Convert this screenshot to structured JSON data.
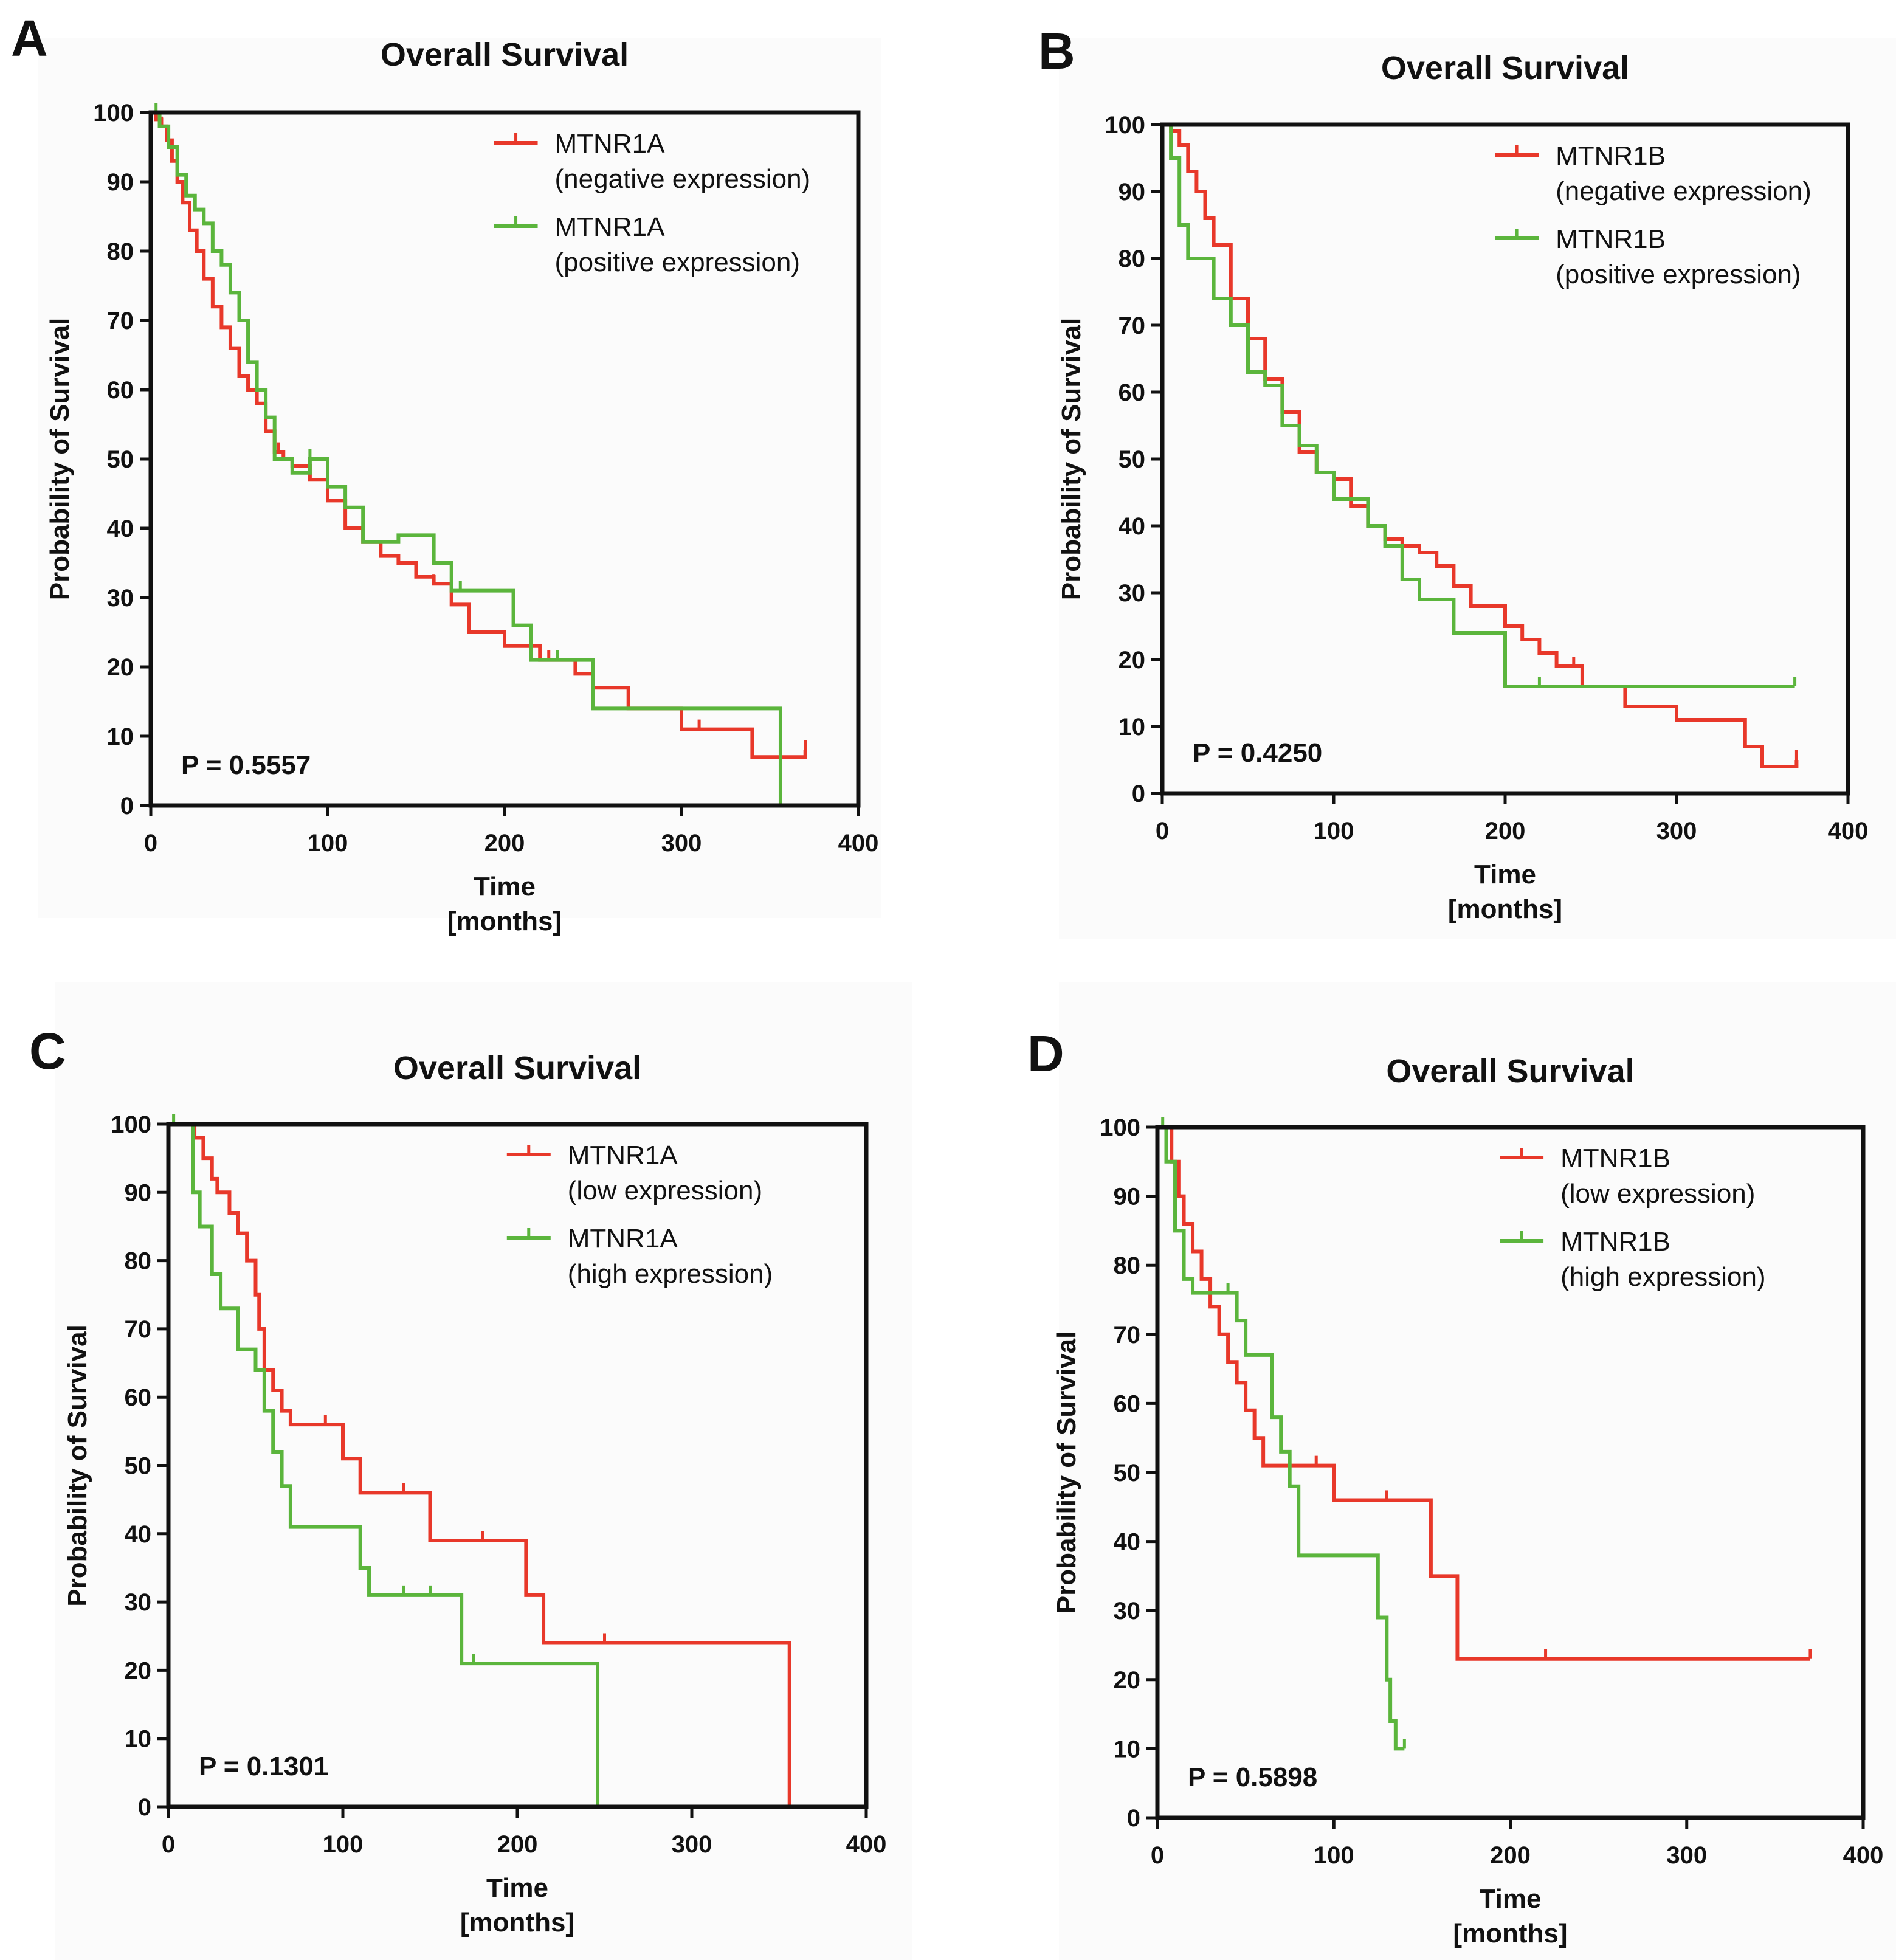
{
  "chart_data": [
    {
      "panel": "A",
      "type": "line",
      "title": "Overall Survival",
      "xlabel": [
        "Time",
        "[months]"
      ],
      "ylabel": "Probability of Survival",
      "xlim": [
        0,
        400
      ],
      "ylim": [
        0,
        100
      ],
      "xticks": [
        0,
        100,
        200,
        300,
        400
      ],
      "yticks": [
        0,
        10,
        20,
        30,
        40,
        50,
        60,
        70,
        80,
        90,
        100
      ],
      "p_value": "P = 0.5557",
      "series": [
        {
          "name": "MTNR1A",
          "subname": "(negative expression)",
          "color": "#e8382a",
          "x": [
            0,
            3,
            6,
            9,
            12,
            15,
            18,
            22,
            26,
            30,
            35,
            40,
            45,
            50,
            55,
            60,
            65,
            70,
            75,
            80,
            90,
            100,
            110,
            120,
            130,
            140,
            150,
            160,
            170,
            180,
            200,
            220,
            240,
            250,
            270,
            300,
            340,
            355,
            370
          ],
          "y": [
            100,
            99,
            98,
            96,
            93,
            90,
            87,
            83,
            80,
            76,
            72,
            69,
            66,
            62,
            60,
            58,
            54,
            51,
            50,
            49,
            47,
            44,
            40,
            38,
            36,
            35,
            33,
            32,
            29,
            25,
            23,
            21,
            19,
            17,
            14,
            11,
            7,
            7,
            8
          ],
          "censored_x": [
            6,
            35,
            72,
            160,
            225,
            310,
            370
          ]
        },
        {
          "name": "MTNR1A",
          "subname": "(positive expression)",
          "color": "#5bb53c",
          "x": [
            0,
            5,
            10,
            15,
            20,
            25,
            30,
            35,
            40,
            45,
            50,
            55,
            60,
            65,
            70,
            80,
            90,
            100,
            110,
            120,
            140,
            160,
            170,
            180,
            205,
            215,
            250,
            270,
            300,
            355,
            356
          ],
          "y": [
            100,
            98,
            95,
            91,
            88,
            86,
            84,
            80,
            78,
            74,
            70,
            64,
            60,
            56,
            50,
            48,
            50,
            46,
            43,
            38,
            39,
            35,
            31,
            31,
            26,
            21,
            14,
            14,
            14,
            14,
            0
          ],
          "censored_x": [
            3,
            90,
            175,
            230
          ]
        }
      ]
    },
    {
      "panel": "B",
      "type": "line",
      "title": "Overall Survival",
      "xlabel": [
        "Time",
        "[months]"
      ],
      "ylabel": "Probability of Survival",
      "xlim": [
        0,
        400
      ],
      "ylim": [
        0,
        100
      ],
      "xticks": [
        0,
        100,
        200,
        300,
        400
      ],
      "yticks": [
        0,
        10,
        20,
        30,
        40,
        50,
        60,
        70,
        80,
        90,
        100
      ],
      "p_value": "P = 0.4250",
      "series": [
        {
          "name": "MTNR1B",
          "subname": "(negative expression)",
          "color": "#e8382a",
          "x": [
            0,
            5,
            10,
            15,
            20,
            25,
            30,
            40,
            50,
            60,
            70,
            80,
            90,
            100,
            110,
            120,
            130,
            140,
            150,
            160,
            170,
            180,
            200,
            210,
            220,
            230,
            245,
            270,
            300,
            340,
            350,
            360,
            370
          ],
          "y": [
            100,
            99,
            97,
            93,
            90,
            86,
            82,
            74,
            68,
            62,
            57,
            51,
            48,
            47,
            43,
            40,
            38,
            37,
            36,
            34,
            31,
            28,
            25,
            23,
            21,
            19,
            16,
            13,
            11,
            7,
            4,
            4,
            5
          ],
          "censored_x": [
            120,
            200,
            240,
            370
          ]
        },
        {
          "name": "MTNR1B",
          "subname": "(positive expression)",
          "color": "#5bb53c",
          "x": [
            0,
            5,
            10,
            15,
            20,
            30,
            40,
            50,
            60,
            70,
            80,
            90,
            100,
            110,
            120,
            130,
            140,
            150,
            170,
            200,
            260,
            300,
            369
          ],
          "y": [
            100,
            95,
            85,
            80,
            80,
            74,
            70,
            63,
            61,
            55,
            52,
            48,
            44,
            44,
            40,
            37,
            32,
            29,
            24,
            16,
            16,
            16,
            16
          ],
          "censored_x": [
            220,
            369
          ]
        }
      ]
    },
    {
      "panel": "C",
      "type": "line",
      "title": "Overall Survival",
      "xlabel": [
        "Time",
        "[months]"
      ],
      "ylabel": "Probability of Survival",
      "xlim": [
        0,
        400
      ],
      "ylim": [
        0,
        100
      ],
      "xticks": [
        0,
        100,
        200,
        300,
        400
      ],
      "yticks": [
        0,
        10,
        20,
        30,
        40,
        50,
        60,
        70,
        80,
        90,
        100
      ],
      "p_value": "P = 0.1301",
      "series": [
        {
          "name": "MTNR1A",
          "subname": "(low expression)",
          "color": "#e8382a",
          "x": [
            0,
            12,
            15,
            20,
            25,
            28,
            35,
            40,
            45,
            50,
            52,
            55,
            60,
            65,
            70,
            90,
            100,
            110,
            140,
            150,
            180,
            200,
            205,
            215,
            220,
            240,
            280,
            300,
            356
          ],
          "y": [
            100,
            100,
            98,
            95,
            92,
            90,
            87,
            84,
            80,
            75,
            70,
            64,
            61,
            58,
            56,
            56,
            51,
            46,
            46,
            39,
            39,
            39,
            31,
            24,
            24,
            24,
            24,
            24,
            0
          ],
          "censored_x": [
            65,
            90,
            135,
            180,
            250
          ]
        },
        {
          "name": "MTNR1A",
          "subname": "(high expression)",
          "color": "#5bb53c",
          "x": [
            0,
            10,
            14,
            18,
            25,
            30,
            40,
            50,
            55,
            60,
            65,
            70,
            80,
            100,
            110,
            115,
            120,
            140,
            160,
            168,
            200,
            246
          ],
          "y": [
            100,
            100,
            90,
            85,
            78,
            73,
            67,
            64,
            58,
            52,
            47,
            41,
            41,
            41,
            35,
            31,
            31,
            31,
            31,
            21,
            21,
            0
          ],
          "censored_x": [
            3,
            135,
            150,
            175
          ]
        }
      ]
    },
    {
      "panel": "D",
      "type": "line",
      "title": "Overall Survival",
      "xlabel": [
        "Time",
        "[months]"
      ],
      "ylabel": "Probability of Survival",
      "xlim": [
        0,
        400
      ],
      "ylim": [
        0,
        100
      ],
      "xticks": [
        0,
        100,
        200,
        300,
        400
      ],
      "yticks": [
        0,
        10,
        20,
        30,
        40,
        50,
        60,
        70,
        80,
        90,
        100
      ],
      "p_value": "P = 0.5898",
      "series": [
        {
          "name": "MTNR1B",
          "subname": "(low expression)",
          "color": "#e8382a",
          "x": [
            0,
            8,
            12,
            15,
            20,
            25,
            30,
            35,
            40,
            45,
            50,
            55,
            60,
            70,
            100,
            120,
            150,
            155,
            170,
            220,
            370
          ],
          "y": [
            100,
            95,
            90,
            86,
            82,
            78,
            74,
            70,
            66,
            63,
            59,
            55,
            51,
            51,
            46,
            46,
            46,
            35,
            23,
            23,
            23
          ],
          "censored_x": [
            90,
            130,
            220,
            370
          ]
        },
        {
          "name": "MTNR1B",
          "subname": "(high expression)",
          "color": "#5bb53c",
          "x": [
            0,
            5,
            10,
            15,
            20,
            30,
            45,
            50,
            60,
            65,
            70,
            75,
            80,
            100,
            120,
            125,
            130,
            132,
            135,
            140
          ],
          "y": [
            100,
            95,
            85,
            78,
            76,
            76,
            72,
            67,
            67,
            58,
            53,
            48,
            38,
            38,
            38,
            29,
            20,
            14,
            10,
            10
          ],
          "censored_x": [
            3,
            40,
            140
          ]
        }
      ]
    }
  ]
}
